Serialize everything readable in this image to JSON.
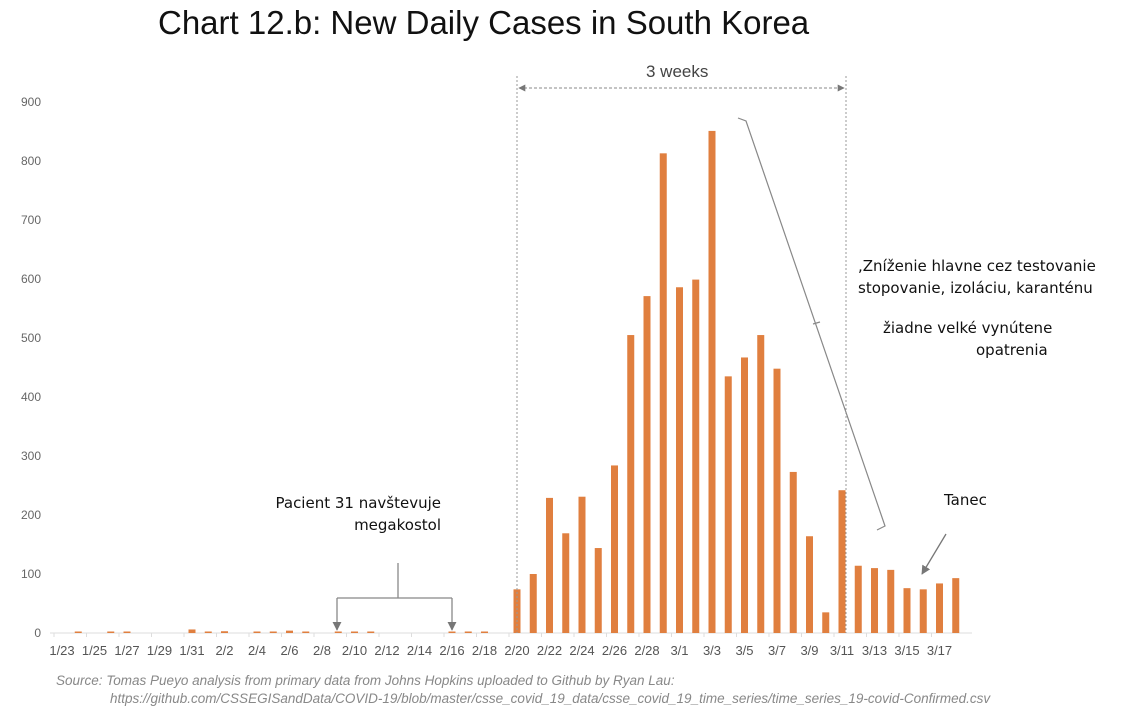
{
  "chart_data": {
    "type": "bar",
    "title": "Chart 12.b: New Daily Cases in South Korea",
    "xlabel": "",
    "ylabel": "",
    "ylim": [
      0,
      900
    ],
    "yticks": [
      0,
      100,
      200,
      300,
      400,
      500,
      600,
      700,
      800,
      900
    ],
    "grid": false,
    "bar_color": "#e07f3f",
    "categories": [
      "1/23",
      "1/24",
      "1/25",
      "1/26",
      "1/27",
      "1/28",
      "1/29",
      "1/30",
      "1/31",
      "2/1",
      "2/2",
      "2/3",
      "2/4",
      "2/5",
      "2/6",
      "2/7",
      "2/8",
      "2/9",
      "2/10",
      "2/11",
      "2/12",
      "2/13",
      "2/14",
      "2/15",
      "2/16",
      "2/17",
      "2/18",
      "2/19",
      "2/20",
      "2/21",
      "2/22",
      "2/23",
      "2/24",
      "2/25",
      "2/26",
      "2/27",
      "2/28",
      "2/29",
      "3/1",
      "3/2",
      "3/3",
      "3/4",
      "3/5",
      "3/6",
      "3/7",
      "3/8",
      "3/9",
      "3/10",
      "3/11",
      "3/12",
      "3/13",
      "3/14",
      "3/15",
      "3/16",
      "3/17",
      "3/18"
    ],
    "xtick_labels": [
      "1/23",
      "1/25",
      "1/27",
      "1/29",
      "1/31",
      "2/2",
      "2/4",
      "2/6",
      "2/8",
      "2/10",
      "2/12",
      "2/14",
      "2/16",
      "2/18",
      "2/20",
      "2/22",
      "2/24",
      "2/26",
      "2/28",
      "3/1",
      "3/3",
      "3/5",
      "3/7",
      "3/9",
      "3/11",
      "3/13",
      "3/15",
      "3/17"
    ],
    "values": [
      0,
      1,
      0,
      1,
      1,
      0,
      0,
      0,
      6,
      1,
      3,
      0,
      1,
      2,
      4,
      1,
      0,
      1,
      1,
      1,
      0,
      0,
      0,
      0,
      1,
      1,
      1,
      0,
      74,
      100,
      229,
      169,
      231,
      144,
      284,
      505,
      571,
      813,
      586,
      599,
      851,
      435,
      467,
      505,
      448,
      273,
      164,
      35,
      242,
      114,
      110,
      107,
      76,
      74,
      84,
      93
    ],
    "annotations": {
      "span_label": "3 weeks",
      "patient": [
        "Pacient 31 navštevuje",
        "megakostol"
      ],
      "reduction": [
        ",Zníženie hlavne cez testovanie",
        "stopovanie, izoláciu, karanténu"
      ],
      "no_measures": [
        "žiadne velké vynútene",
        "opatrenia"
      ],
      "dance": "Tanec"
    }
  },
  "source": {
    "line1": "Source: Tomas Pueyo analysis from primary data from Johns Hopkins uploaded to Github by Ryan Lau:",
    "line2": "https://github.com/CSSEGISandData/COVID-19/blob/master/csse_covid_19_data/csse_covid_19_time_series/time_series_19-covid-Confirmed.csv"
  }
}
